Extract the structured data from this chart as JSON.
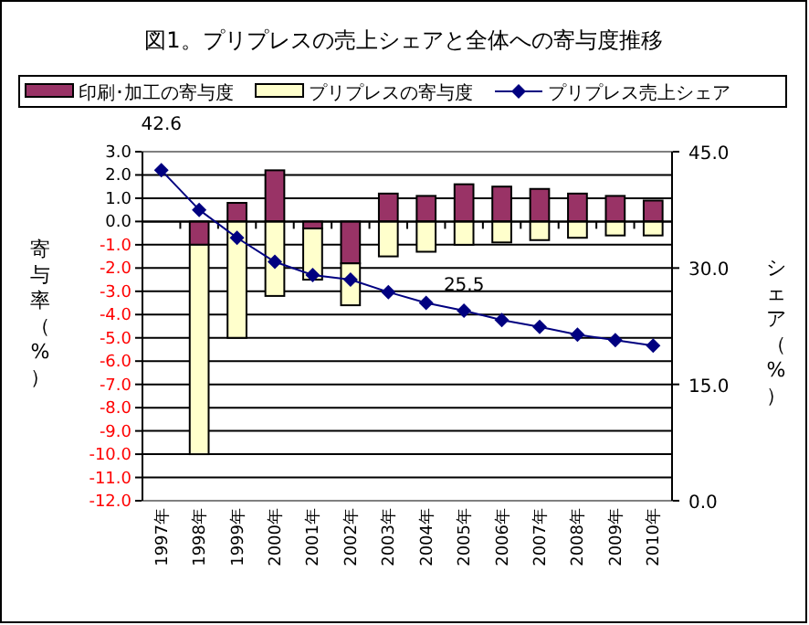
{
  "chart_data": {
    "type": "bar",
    "title": "図1。プリプレスの売上シェアと全体への寄与度推移",
    "ylabel": "寄与率（%）",
    "y2label": "シェア（%）",
    "categories": [
      "1997年",
      "1998年",
      "1999年",
      "2000年",
      "2001年",
      "2002年",
      "2003年",
      "2004年",
      "2005年",
      "2006年",
      "2007年",
      "2008年",
      "2009年",
      "2010年"
    ],
    "stacked": true,
    "legend": "top",
    "grid": "y",
    "marker": "diamond",
    "series": [
      {
        "name": "印刷･加工の寄与度",
        "color": "#993366",
        "values": [
          null,
          -1.0,
          0.8,
          2.2,
          -0.3,
          -1.8,
          1.2,
          1.1,
          1.6,
          1.5,
          1.4,
          1.2,
          1.1,
          0.9
        ]
      },
      {
        "name": "プリプレスの寄与度",
        "color": "#ffffcc",
        "values": [
          null,
          -9.0,
          -5.0,
          -3.2,
          -2.2,
          -1.8,
          -1.5,
          -1.3,
          -1.0,
          -0.9,
          -0.8,
          -0.7,
          -0.6,
          -0.6
        ]
      },
      {
        "name": "プリプレス売上シェア",
        "type": "line",
        "axis": "y2",
        "color": "#000080",
        "values": [
          42.6,
          37.5,
          33.9,
          30.8,
          29.1,
          28.5,
          26.9,
          25.5,
          24.5,
          23.3,
          22.4,
          21.4,
          20.7,
          20.0
        ]
      }
    ],
    "ylim": [
      -12,
      3
    ],
    "yticks": [
      {
        "value": 3,
        "label": "3.0"
      },
      {
        "value": 2,
        "label": "2.0"
      },
      {
        "value": 1,
        "label": "1.0"
      },
      {
        "value": 0,
        "label": "0.0"
      },
      {
        "value": -1,
        "label": "-1.0"
      },
      {
        "value": -2,
        "label": "-2.0"
      },
      {
        "value": -3,
        "label": "-3.0"
      },
      {
        "value": -4,
        "label": "-4.0"
      },
      {
        "value": -5,
        "label": "-5.0"
      },
      {
        "value": -6,
        "label": "-6.0"
      },
      {
        "value": -7,
        "label": "-7.0"
      },
      {
        "value": -8,
        "label": "-8.0"
      },
      {
        "value": -9,
        "label": "-9.0"
      },
      {
        "value": -10,
        "label": "-10.0"
      },
      {
        "value": -11,
        "label": "-11.0"
      },
      {
        "value": -12,
        "label": "-12.0"
      }
    ],
    "y2lim": [
      0,
      45
    ],
    "y2ticks": [
      {
        "value": 0,
        "label": "0.0"
      },
      {
        "value": 15,
        "label": "15.0"
      },
      {
        "value": 30,
        "label": "30.0"
      },
      {
        "value": 45,
        "label": "45.0"
      }
    ],
    "annotations": [
      "42.6",
      "25.5"
    ]
  }
}
